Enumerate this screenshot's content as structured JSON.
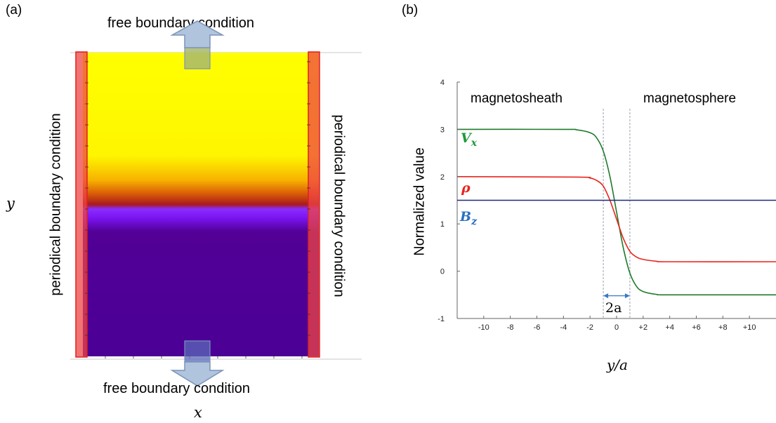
{
  "panel_a": {
    "label": "(a)",
    "top_condition": "free  boundary condition",
    "bottom_condition": "free  boundary condition",
    "left_condition": "periodical boundary condition",
    "right_condition": "periodical boundary condition",
    "y_axis_symbol": "y",
    "x_axis_symbol": "x",
    "colors": {
      "upper": "#ffff00",
      "interface": "#c0201a",
      "lower": "#4b0096",
      "boundary_strip": "#f05050",
      "arrow": "#b0c4de"
    }
  },
  "panel_b": {
    "label": "(b)",
    "region_left": "magnetosheath",
    "region_right": "magnetosphere",
    "width_annotation": "2a",
    "legend": {
      "vx": "V",
      "vx_sub": "x",
      "rho": "ρ",
      "bz": "B",
      "bz_sub": "z"
    }
  },
  "chart_data": {
    "type": "line",
    "title": "",
    "xlabel": "y/a",
    "ylabel": "Normalized value",
    "xlim": [
      -12,
      12
    ],
    "ylim": [
      -1,
      4
    ],
    "x_ticks": [
      -10,
      -8,
      -6,
      -4,
      -2,
      0,
      2,
      4,
      6,
      8,
      10
    ],
    "x_tick_labels": [
      "-10",
      "-8",
      "-6",
      "-4",
      "-2",
      "0",
      "+2",
      "+4",
      "+6",
      "+8",
      "+10"
    ],
    "y_ticks": [
      -1,
      0,
      1,
      2,
      3,
      4
    ],
    "y_tick_labels": [
      "-1",
      "0",
      "1",
      "2",
      "3",
      "4"
    ],
    "vlines": [
      -1,
      1
    ],
    "grid": false,
    "series": [
      {
        "name": "V_x",
        "color": "#1e7a2a",
        "x": [
          -12,
          -4,
          -3,
          -2,
          -1.5,
          -1,
          -0.5,
          0,
          0.5,
          1,
          1.5,
          2,
          3,
          4,
          12
        ],
        "y": [
          3,
          3,
          2.99,
          2.93,
          2.82,
          2.54,
          2.0,
          1.25,
          0.5,
          -0.04,
          -0.32,
          -0.43,
          -0.49,
          -0.5,
          -0.5
        ]
      },
      {
        "name": "ρ",
        "color": "#e8241c",
        "x": [
          -12,
          -3,
          -2,
          -1.5,
          -1,
          -0.5,
          0,
          0.5,
          1,
          1.5,
          2,
          3,
          4,
          12
        ],
        "y": [
          2,
          1.99,
          1.97,
          1.92,
          1.8,
          1.5,
          1.1,
          0.7,
          0.42,
          0.3,
          0.25,
          0.21,
          0.2,
          0.2
        ]
      },
      {
        "name": "B_z",
        "color": "#1c2a7a",
        "x": [
          -12,
          12
        ],
        "y": [
          1.5,
          1.5
        ]
      }
    ]
  }
}
